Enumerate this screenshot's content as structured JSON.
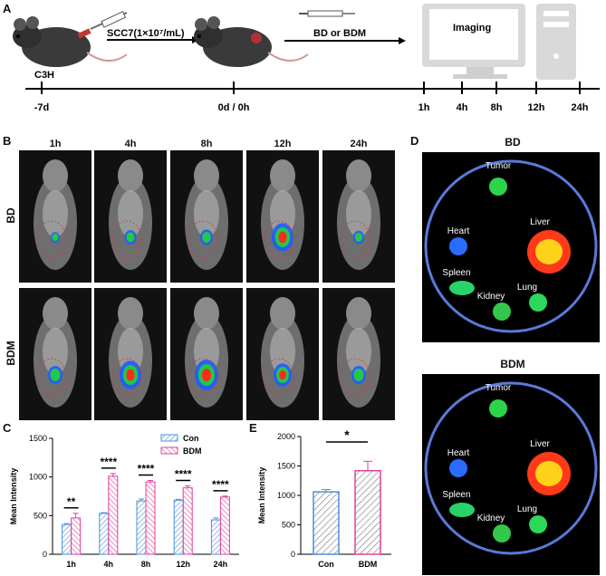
{
  "panels": {
    "A": "A",
    "B": "B",
    "C": "C",
    "D": "D",
    "E": "E"
  },
  "panel_a": {
    "strain": "C3H",
    "injection": "SCC7(1×10⁷/mL)",
    "treatment": "BD  or  BDM",
    "imaging": "Imaging",
    "timeline": [
      "-7d",
      "0d / 0h",
      "1h",
      "4h",
      "8h",
      "12h",
      "24h"
    ]
  },
  "panel_b": {
    "columns": [
      "1h",
      "4h",
      "8h",
      "12h",
      "24h"
    ],
    "rows": [
      "BD",
      "BDM"
    ]
  },
  "panel_d": {
    "groups": [
      "BD",
      "BDM"
    ],
    "organs": [
      "Tumor",
      "Heart",
      "Liver",
      "Spleen",
      "Kidney",
      "Lung"
    ]
  },
  "chart_data": [
    {
      "type": "bar",
      "panel": "C",
      "categories": [
        "1h",
        "4h",
        "8h",
        "12h",
        "24h"
      ],
      "series": [
        {
          "name": "Con",
          "values": [
            385,
            530,
            690,
            700,
            445
          ],
          "errors": [
            12,
            8,
            25,
            10,
            25
          ],
          "color": "#4a90d9"
        },
        {
          "name": "BDM",
          "values": [
            470,
            1010,
            935,
            860,
            740
          ],
          "errors": [
            60,
            35,
            20,
            25,
            12
          ],
          "color": "#e0409a"
        }
      ],
      "significance": [
        "**",
        "****",
        "****",
        "****",
        "****"
      ],
      "ylabel": "Mean Intensity",
      "yticks": [
        "0",
        "500",
        "1000",
        "1500"
      ],
      "ylim": [
        0,
        1500
      ],
      "legend": "top-right"
    },
    {
      "type": "bar",
      "panel": "E",
      "categories": [
        "Con",
        "BDM"
      ],
      "values": [
        1060,
        1420
      ],
      "errors": [
        40,
        160
      ],
      "colors": [
        "#4a90d9",
        "#e0409a"
      ],
      "significance": "*",
      "ylabel": "Mean Intensity",
      "yticks": [
        "0",
        "500",
        "1000",
        "1500",
        "2000"
      ],
      "ylim": [
        0,
        2000
      ]
    }
  ]
}
